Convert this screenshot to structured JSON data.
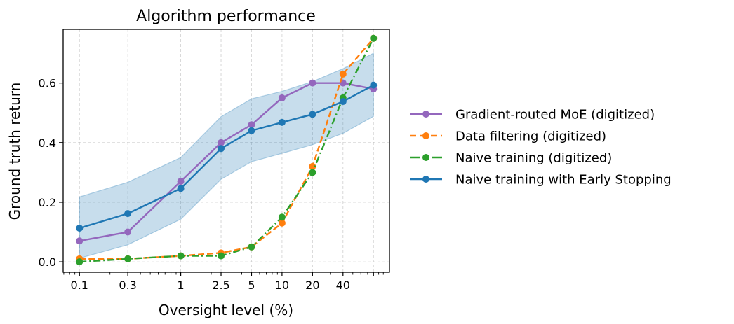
{
  "chart_data": {
    "type": "line",
    "title": "Algorithm performance",
    "xlabel": "Oversight level (%)",
    "ylabel": "Ground truth return",
    "xscale": "log",
    "x": [
      0.1,
      0.3,
      1,
      2.5,
      5,
      10,
      20,
      40,
      80
    ],
    "xticks": [
      0.1,
      0.3,
      1,
      2.5,
      5,
      10,
      20,
      40
    ],
    "xtick_labels": [
      "0.1",
      "0.3",
      "1",
      "2.5",
      "5",
      "10",
      "20",
      "40"
    ],
    "xlim": [
      0.069,
      115
    ],
    "yticks": [
      0.0,
      0.2,
      0.4,
      0.6
    ],
    "ytick_labels": [
      "0.0",
      "0.2",
      "0.4",
      "0.6"
    ],
    "ylim": [
      -0.035,
      0.78
    ],
    "grid": true,
    "legend_position": "outside right",
    "series": [
      {
        "name": "Gradient-routed MoE (digitized)",
        "color": "#9467bd",
        "linestyle": "solid",
        "values": [
          0.07,
          0.1,
          0.27,
          0.4,
          0.46,
          0.55,
          0.6,
          0.6,
          0.58
        ]
      },
      {
        "name": "Data filtering (digitized)",
        "color": "#ff7f0e",
        "linestyle": "dashed",
        "values": [
          0.01,
          0.01,
          0.02,
          0.03,
          0.05,
          0.13,
          0.32,
          0.63,
          0.75
        ]
      },
      {
        "name": "Naive training (digitized)",
        "color": "#2ca02c",
        "linestyle": "dashdot",
        "values": [
          0.0,
          0.01,
          0.02,
          0.02,
          0.05,
          0.15,
          0.3,
          0.55,
          0.75
        ]
      },
      {
        "name": "Naive training with Early Stopping",
        "color": "#1f77b4",
        "linestyle": "solid",
        "values": [
          0.113,
          0.162,
          0.246,
          0.38,
          0.44,
          0.468,
          0.495,
          0.538,
          0.593
        ],
        "band_upper": [
          0.218,
          0.267,
          0.35,
          0.487,
          0.547,
          0.572,
          0.605,
          0.648,
          0.7
        ],
        "band_lower": [
          0.012,
          0.057,
          0.143,
          0.277,
          0.336,
          0.364,
          0.393,
          0.431,
          0.488
        ]
      }
    ]
  }
}
